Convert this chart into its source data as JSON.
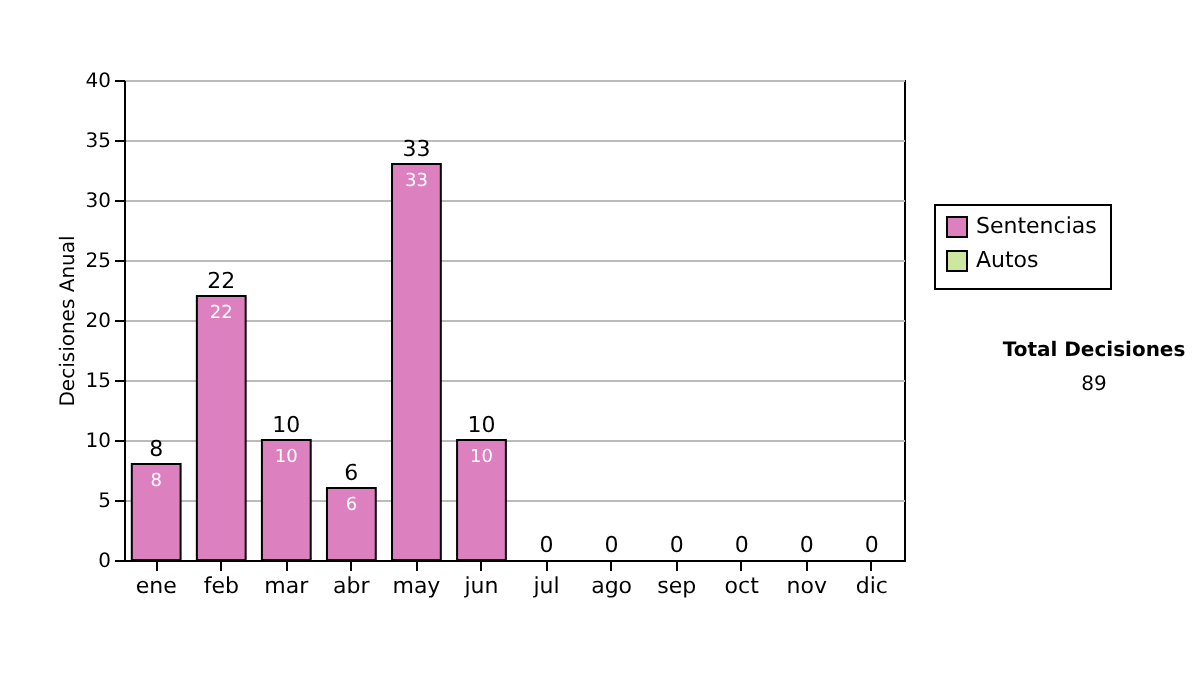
{
  "chart_data": {
    "type": "bar",
    "stacked": true,
    "ylabel": "Decisiones Anual",
    "categories": [
      "ene",
      "feb",
      "mar",
      "abr",
      "may",
      "jun",
      "jul",
      "ago",
      "sep",
      "oct",
      "nov",
      "dic"
    ],
    "series": [
      {
        "name": "Sentencias",
        "color": "#dd80c0",
        "values": [
          8,
          22,
          10,
          6,
          33,
          10,
          0,
          0,
          0,
          0,
          0,
          0
        ],
        "value_labels": [
          "8",
          "22",
          "10",
          "6",
          "33",
          "10",
          null,
          null,
          null,
          null,
          null,
          null
        ]
      },
      {
        "name": "Autos",
        "color": "#cce8a0",
        "values": [
          0,
          0,
          0,
          0,
          0,
          0,
          0,
          0,
          0,
          0,
          0,
          0
        ]
      }
    ],
    "totals": [
      "8",
      "22",
      "10",
      "6",
      "33",
      "10",
      "0",
      "0",
      "0",
      "0",
      "0",
      "0"
    ],
    "ylim": [
      0,
      40
    ],
    "yticks": [
      0,
      5,
      10,
      15,
      20,
      25,
      30,
      35,
      40
    ],
    "grid": "y",
    "legend": "right",
    "annotations": [
      "Total Decisiones",
      "89"
    ]
  }
}
